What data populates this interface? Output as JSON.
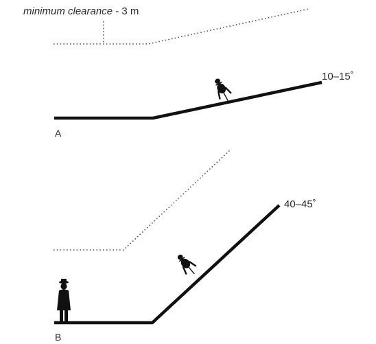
{
  "caption": {
    "italic_text": "minimum clearance",
    "suffix_text": " - 3 m"
  },
  "panels": [
    {
      "letter": "A",
      "angle_label": "10–15˚",
      "figure": "cyclist"
    },
    {
      "letter": "B",
      "angle_label": "40–45˚",
      "figures": [
        "cyclist",
        "standing-person"
      ]
    }
  ],
  "colors": {
    "ramp": "#111111",
    "clearance": "#555555",
    "text": "#2a2a2a"
  }
}
